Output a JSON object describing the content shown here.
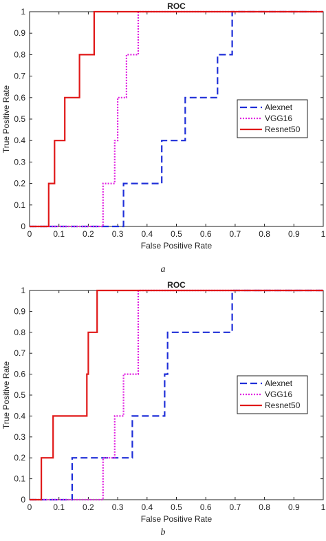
{
  "chart_data": [
    {
      "type": "line",
      "title": "ROC",
      "xlabel": "False Positive Rate",
      "ylabel": "True Positive Rate",
      "xlim": [
        0,
        1
      ],
      "ylim": [
        0,
        1
      ],
      "xticks": [
        "0",
        "0.1",
        "0.2",
        "0.3",
        "0.4",
        "0.5",
        "0.6",
        "0.7",
        "0.8",
        "0.9",
        "1"
      ],
      "yticks": [
        "0",
        "0.1",
        "0.2",
        "0.3",
        "0.4",
        "0.5",
        "0.6",
        "0.7",
        "0.8",
        "0.9",
        "1"
      ],
      "legend_position": "right",
      "series": [
        {
          "name": "Alexnet",
          "color": "#1f2fd8",
          "dash": "dashed",
          "x": [
            0,
            0.32,
            0.32,
            0.45,
            0.45,
            0.53,
            0.53,
            0.64,
            0.64,
            0.69,
            0.69,
            1
          ],
          "y": [
            0,
            0,
            0.2,
            0.2,
            0.4,
            0.4,
            0.6,
            0.6,
            0.8,
            0.8,
            1,
            1
          ]
        },
        {
          "name": "VGG16",
          "color": "#e020e0",
          "dash": "dotted",
          "x": [
            0,
            0.25,
            0.25,
            0.29,
            0.29,
            0.3,
            0.3,
            0.33,
            0.33,
            0.37,
            0.37,
            1
          ],
          "y": [
            0,
            0,
            0.2,
            0.2,
            0.4,
            0.4,
            0.6,
            0.6,
            0.8,
            0.8,
            1,
            1
          ]
        },
        {
          "name": "Resnet50",
          "color": "#e01818",
          "dash": "solid",
          "x": [
            0,
            0.065,
            0.065,
            0.085,
            0.085,
            0.12,
            0.12,
            0.17,
            0.17,
            0.22,
            0.22,
            1
          ],
          "y": [
            0,
            0,
            0.2,
            0.2,
            0.4,
            0.4,
            0.6,
            0.6,
            0.8,
            0.8,
            1,
            1
          ]
        }
      ]
    },
    {
      "type": "line",
      "title": "ROC",
      "xlabel": "False Positive Rate",
      "ylabel": "True Positive Rate",
      "xlim": [
        0,
        1
      ],
      "ylim": [
        0,
        1
      ],
      "xticks": [
        "0",
        "0.1",
        "0.2",
        "0.3",
        "0.4",
        "0.5",
        "0.6",
        "0.7",
        "0.8",
        "0.9",
        "1"
      ],
      "yticks": [
        "0",
        "0.1",
        "0.2",
        "0.3",
        "0.4",
        "0.5",
        "0.6",
        "0.7",
        "0.8",
        "0.9",
        "1"
      ],
      "legend_position": "right",
      "series": [
        {
          "name": "Alexnet",
          "color": "#1f2fd8",
          "dash": "dashed",
          "x": [
            0,
            0.145,
            0.145,
            0.35,
            0.35,
            0.46,
            0.46,
            0.47,
            0.47,
            0.69,
            0.69,
            1
          ],
          "y": [
            0,
            0,
            0.2,
            0.2,
            0.4,
            0.4,
            0.6,
            0.6,
            0.8,
            0.8,
            1,
            1
          ]
        },
        {
          "name": "VGG16",
          "color": "#e020e0",
          "dash": "dotted",
          "x": [
            0,
            0.25,
            0.25,
            0.29,
            0.29,
            0.32,
            0.32,
            0.37,
            0.37,
            1
          ],
          "y": [
            0,
            0,
            0.2,
            0.2,
            0.4,
            0.4,
            0.6,
            0.6,
            1,
            1
          ]
        },
        {
          "name": "Resnet50",
          "color": "#e01818",
          "dash": "solid",
          "x": [
            0,
            0.04,
            0.04,
            0.08,
            0.08,
            0.195,
            0.195,
            0.2,
            0.2,
            0.23,
            0.23,
            1
          ],
          "y": [
            0,
            0,
            0.2,
            0.2,
            0.4,
            0.4,
            0.6,
            0.6,
            0.8,
            0.8,
            1,
            1
          ]
        }
      ]
    }
  ],
  "captions": [
    "a",
    "b"
  ]
}
